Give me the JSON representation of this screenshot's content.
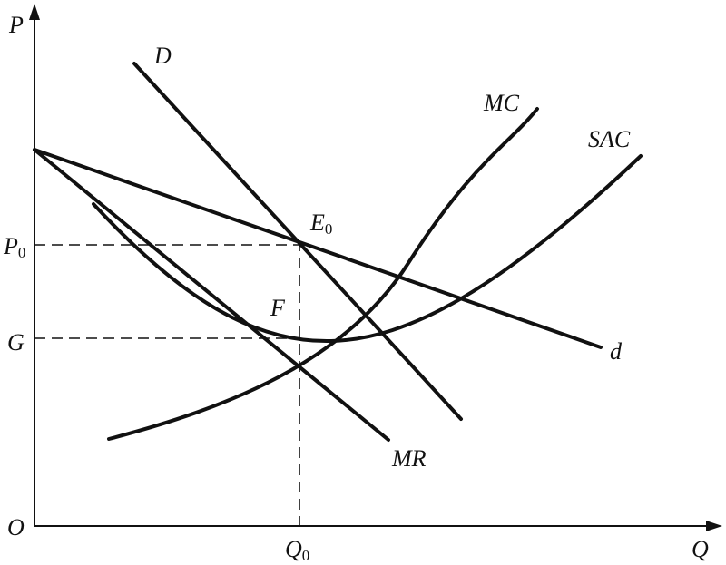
{
  "labels": {
    "p_axis": {
      "main": "P"
    },
    "q_axis": {
      "main": "Q"
    },
    "origin": {
      "main": "O"
    },
    "p0": {
      "main": "P",
      "sub": "0"
    },
    "g": {
      "main": "G"
    },
    "q0": {
      "main": "Q",
      "sub": "0"
    },
    "demand": {
      "main": "D"
    },
    "mc": {
      "main": "MC"
    },
    "sac": {
      "main": "SAC"
    },
    "e0": {
      "main": "E",
      "sub": "0"
    },
    "f": {
      "main": "F"
    },
    "small_d": {
      "main": "d"
    },
    "mr": {
      "main": "MR"
    }
  }
}
